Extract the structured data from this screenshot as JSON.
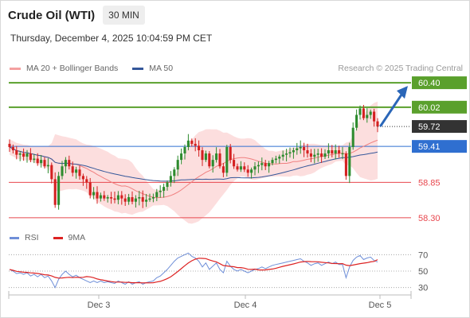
{
  "header": {
    "title": "Crude Oil (WTI)",
    "timeframe": "30 MIN",
    "datetime": "Thursday, December 4, 2025 10:04:59 PM CET"
  },
  "copyright": "Research © 2025 Trading Central",
  "colors": {
    "resistance": "#5aa02c",
    "support": "#e8474e",
    "pivot": "#2f6fd0",
    "ma20": "#f08080",
    "ma50": "#34579a",
    "rsi": "#6f8fd8",
    "rsi_ma": "#dd2222",
    "bull": "#2e8b2e",
    "bear": "#d42020",
    "arrow": "#2a66b8",
    "band": "#fbd3d3"
  },
  "chart_data": [
    {
      "type": "candlestick",
      "legend": [
        {
          "name": "MA 20 + Bollinger Bands",
          "color": "#f08080"
        },
        {
          "name": "MA 50",
          "color": "#34579a"
        }
      ],
      "x_ticks": [
        "Dec 3",
        "Dec 4",
        "Dec 5"
      ],
      "ylim": [
        58.2,
        60.5
      ],
      "last_price": 59.72,
      "levels": [
        {
          "value": 60.4,
          "label": "60.40",
          "kind": "resistance"
        },
        {
          "value": 60.02,
          "label": "60.02",
          "kind": "resistance"
        },
        {
          "value": 59.41,
          "label": "59.41",
          "kind": "pivot"
        },
        {
          "value": 58.85,
          "label": "58.85",
          "kind": "support"
        },
        {
          "value": 58.3,
          "label": "58.30",
          "kind": "support"
        }
      ],
      "close": [
        59.4,
        59.35,
        59.28,
        59.3,
        59.25,
        59.3,
        59.2,
        59.22,
        59.15,
        59.2,
        59.1,
        59.12,
        58.9,
        58.5,
        58.95,
        59.1,
        59.2,
        59.1,
        59.0,
        59.05,
        58.95,
        58.9,
        58.85,
        58.65,
        58.7,
        58.6,
        58.65,
        58.6,
        58.62,
        58.6,
        58.58,
        58.65,
        58.6,
        58.55,
        58.62,
        58.55,
        58.6,
        58.62,
        58.55,
        58.58,
        58.6,
        58.62,
        58.7,
        58.72,
        58.78,
        58.85,
        58.95,
        59.05,
        59.2,
        59.3,
        59.4,
        59.5,
        59.45,
        59.42,
        59.35,
        59.2,
        59.3,
        59.1,
        59.2,
        59.3,
        59.1,
        59.0,
        59.4,
        59.2,
        59.1,
        59.05,
        59.1,
        59.05,
        59.0,
        59.05,
        59.1,
        59.12,
        59.15,
        59.1,
        59.15,
        59.2,
        59.22,
        59.25,
        59.28,
        59.3,
        59.32,
        59.35,
        59.38,
        59.4,
        59.35,
        59.3,
        59.25,
        59.28,
        59.3,
        59.25,
        59.3,
        59.35,
        59.3,
        59.35,
        59.3,
        59.3,
        58.95,
        59.4,
        59.7,
        59.9,
        60.0,
        59.85,
        59.9,
        59.95,
        59.8,
        59.72
      ],
      "open_first": 59.45,
      "high_max": 60.05,
      "low_min": 58.33
    },
    {
      "type": "line",
      "series": [
        {
          "name": "RSI",
          "color": "#6f8fd8"
        },
        {
          "name": "9MA",
          "color": "#dd2222"
        }
      ],
      "y_ticks": [
        70,
        50,
        30
      ],
      "ylim": [
        20,
        80
      ],
      "rsi": [
        52,
        50,
        47,
        48,
        46,
        48,
        44,
        46,
        43,
        46,
        42,
        44,
        38,
        30,
        40,
        46,
        50,
        46,
        43,
        45,
        42,
        40,
        38,
        36,
        38,
        36,
        38,
        36,
        37,
        36,
        35,
        38,
        36,
        34,
        37,
        34,
        36,
        37,
        34,
        36,
        37,
        38,
        42,
        44,
        48,
        52,
        57,
        62,
        66,
        68,
        70,
        72,
        68,
        66,
        62,
        55,
        60,
        52,
        56,
        60,
        52,
        48,
        62,
        56,
        52,
        50,
        52,
        50,
        48,
        50,
        52,
        53,
        55,
        53,
        55,
        57,
        58,
        59,
        60,
        61,
        62,
        63,
        64,
        65,
        62,
        60,
        57,
        59,
        60,
        57,
        59,
        61,
        59,
        61,
        58,
        58,
        42,
        55,
        63,
        67,
        69,
        64,
        66,
        67,
        63,
        61
      ]
    }
  ]
}
